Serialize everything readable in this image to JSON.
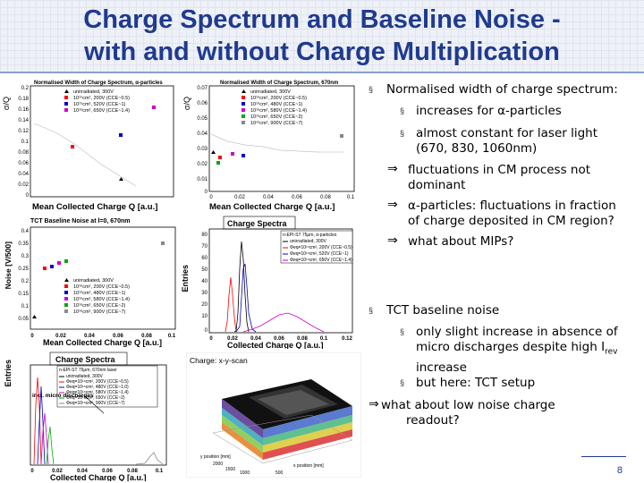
{
  "title": {
    "line1": "Charge Spectrum and Baseline Noise -",
    "line2": "with and without Charge Multiplication"
  },
  "bullets": {
    "b1": "Normalised width of charge spectrum:",
    "b1a": "increases for α-particles",
    "b1b_l1": "almost constant for laser light",
    "b1b_l2": "(670, 830, 1060nm)",
    "c1_l1": "fluctuations in CM process not",
    "c1_l2": "dominant",
    "c2_l1": "α-particles: fluctuations in fraction",
    "c2_l2": "of charge deposited in CM region?",
    "c3": "what about MIPs?",
    "b2": "TCT baseline noise",
    "b2a_l1": "only slight increase in absence of",
    "b2a_l2": "micro discharges despite high I",
    "b2a_sub": "rev",
    "b2a_l3": "increase",
    "b2b": "but here: TCT setup",
    "c4_l1": "what about low noise charge",
    "c4_l2": "readout?",
    "bullet_char": "§",
    "arrow_char": "⇒"
  },
  "page_number": "8",
  "plots": {
    "p1": {
      "title": "Normalised Width of Charge Spectrum, α-particles",
      "ylabel": "σ/Q",
      "xlabel": "Mean Collected Charge Q [a.u.]",
      "legend": [
        "unirradiated, 300V",
        "10¹⁵cm², 200V (CCE~0.5)",
        "10¹⁵cm², 520V (CCE~1)",
        "10¹⁶cm², 650V (CCE~1.4)"
      ],
      "yticks": [
        "0.2",
        "0.18",
        "0.16",
        "0.14",
        "0.12",
        "0.1",
        "0.08",
        "0.06",
        "0.04",
        "0.02",
        "0"
      ]
    },
    "p2": {
      "title": "Normalised Width of Charge Spectrum, 670nm",
      "ylabel": "σ/Q",
      "xlabel": "Mean Collected Charge Q [a.u.]",
      "legend": [
        "unirradiated, 300V",
        "10¹⁶cm², 200V (CCE~0.5)",
        "10¹⁶cm², 480V (CCE~1)",
        "10¹⁶cm², 580V (CCE~1.4)",
        "10¹⁶cm², 650V (CCE~2)",
        "10¹⁶cm², 900V (CCE~7)"
      ],
      "yticks": [
        "0.07",
        "0.06",
        "0.05",
        "0.04",
        "0.03",
        "0.02",
        "0.01",
        "0"
      ],
      "xticks": [
        "0",
        "0.02",
        "0.04",
        "0.06",
        "0.08",
        "0.1"
      ]
    },
    "p3": {
      "title": "TCT Baseline Noise at l=0, 670nm",
      "ylabel": "Noise [V/500]",
      "xlabel": "Mean Collected Charge Q [a.u.]",
      "legend": [
        "unirradiated, 300V",
        "10¹⁶cm², 200V (CCE~0.5)",
        "10¹⁶cm², 480V (CCE~1)",
        "10¹⁶cm², 580V (CCE~1.4)",
        "10¹⁶cm², 650V (CCE~2)",
        "10¹⁶cm², 900V (CCE~7)"
      ],
      "yticks": [
        "0.4",
        "0.35",
        "0.3",
        "0.25",
        "0.2",
        "0.15",
        "0.1",
        "0.05"
      ],
      "xticks": [
        "0",
        "0.02",
        "0.04",
        "0.06",
        "0.08",
        "0.1"
      ]
    },
    "p4": {
      "title": "Charge Spectra",
      "ylabel": "Entries",
      "xlabel": "Collected Charge Q [a.u.]",
      "legend_title": "n-EPI-ST 75μm, α-particles",
      "legend": [
        "unirradiated, 300V",
        "Φeq=10¹⁵cm², 200V (CCE~0.5)",
        "Φeq=10¹⁵cm², 520V (CCE~1)",
        "Φeq=10¹⁶cm², 650V (CCE~1.4)"
      ],
      "yticks": [
        "80",
        "70",
        "60",
        "50",
        "40",
        "30",
        "20",
        "10",
        "0"
      ],
      "xticks": [
        "0",
        "0.02",
        "0.04",
        "0.06",
        "0.08",
        "0.1",
        "0.12"
      ]
    },
    "p5": {
      "title": "Charge Spectra",
      "ylabel": "Entries",
      "xlabel": "Collected Charge Q [a.u.]",
      "legend_title": "n-EPI-ST 75μm, 670nm laser",
      "legend": [
        "unirradiated, 300V",
        "Φeq=10¹⁶cm², 200V (CCE~0.5)",
        "Φeq=10¹⁶cm², 480V (CCE~1.0)",
        "Φeq=10¹⁶cm², 580V (CCE~1.4)",
        "Φeq=10¹⁶cm², 650V (CCE~2)",
        "Φeq=10¹⁶cm², 900V (CCE~7)"
      ],
      "annotation": "incl. micro discharges",
      "xticks": [
        "0",
        "0.02",
        "0.04",
        "0.06",
        "0.08",
        "0.1"
      ]
    },
    "p6": {
      "title": "Charge: x-y-scan",
      "xlabel": "x position [mm]",
      "ylabel": "y position [mm]",
      "xticks": [
        "500",
        "1000",
        "1500",
        "2000"
      ]
    }
  },
  "colors": {
    "title": "#1f3a8f",
    "unirradiated": "#000000",
    "cce05": "#ff0000",
    "cce1": "#0000cc",
    "cce14": "#cc00cc",
    "cce2": "#00aa00",
    "cce7": "#888888"
  }
}
